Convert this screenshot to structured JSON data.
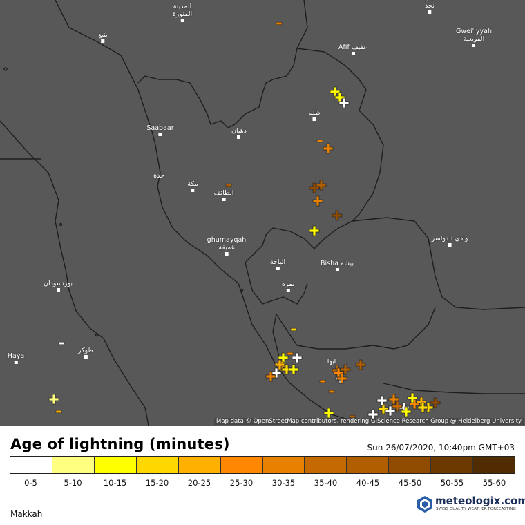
{
  "map": {
    "attribution": "Map data © OpenStreetMap contributors, rendering GIScience Research Group @ Heidelberg University",
    "cities": [
      {
        "id": "madinah",
        "label": "المدينة\nالمنورة"
      },
      {
        "id": "yanbu",
        "label": "ينبع"
      },
      {
        "id": "alrass",
        "label": "عالية\nنجد"
      },
      {
        "id": "gweiiyyah",
        "label": "Gwei'iyyah\nالقويعية"
      },
      {
        "id": "afif",
        "label": "Afif عفيف"
      },
      {
        "id": "zalim",
        "label": "ظلم"
      },
      {
        "id": "saabaar",
        "label": "Saabaar"
      },
      {
        "id": "dhahban",
        "label": "ذهبان"
      },
      {
        "id": "jeddah",
        "label": "جدة"
      },
      {
        "id": "makkah",
        "label": "مكة"
      },
      {
        "id": "taif",
        "label": "الطائف"
      },
      {
        "id": "wadi",
        "label": "وادي الدواسر"
      },
      {
        "id": "ghumayqah",
        "label": "ghumayqah\nغميقة"
      },
      {
        "id": "albaha",
        "label": "الباحة"
      },
      {
        "id": "bisha",
        "label": "Bisha بيشة"
      },
      {
        "id": "namira",
        "label": "نمرة"
      },
      {
        "id": "portsudan",
        "label": "بورتسودان"
      },
      {
        "id": "haya",
        "label": "Haya"
      },
      {
        "id": "tokar",
        "label": "طوكر"
      },
      {
        "id": "abha",
        "label": "ابها"
      }
    ],
    "strikes": [
      {
        "age": "10-15",
        "sym": "plus"
      },
      {
        "age": "10-15",
        "sym": "plus"
      },
      {
        "age": "0-5",
        "sym": "plus"
      },
      {
        "age": "30-35",
        "sym": "plus"
      },
      {
        "age": "40-45",
        "sym": "plus"
      },
      {
        "age": "45-50",
        "sym": "plus"
      },
      {
        "age": "30-35",
        "sym": "plus"
      },
      {
        "age": "45-50",
        "sym": "plus"
      },
      {
        "age": "10-15",
        "sym": "plus"
      },
      {
        "age": "10-15",
        "sym": "plus"
      },
      {
        "age": "0-5",
        "sym": "plus"
      },
      {
        "age": "20-25",
        "sym": "plus"
      },
      {
        "age": "15-20",
        "sym": "plus"
      },
      {
        "age": "0-5",
        "sym": "plus"
      },
      {
        "age": "30-35",
        "sym": "plus"
      },
      {
        "age": "0-5",
        "sym": "plus"
      },
      {
        "age": "35-40",
        "sym": "plus"
      },
      {
        "age": "40-45",
        "sym": "plus"
      },
      {
        "age": "10-15",
        "sym": "plus"
      },
      {
        "age": "15-20",
        "sym": "plus"
      },
      {
        "age": "0-5",
        "sym": "plus"
      },
      {
        "age": "0-5",
        "sym": "plus"
      },
      {
        "age": "25-30",
        "sym": "plus"
      },
      {
        "age": "45-50",
        "sym": "plus"
      },
      {
        "age": "10-15",
        "sym": "plus"
      },
      {
        "age": "30-35",
        "sym": "plus"
      },
      {
        "age": "20-25",
        "sym": "plus"
      },
      {
        "age": "5-10",
        "sym": "plus"
      },
      {
        "age": "0-5",
        "sym": "plus"
      },
      {
        "age": "40-45",
        "sym": "plus"
      },
      {
        "age": "15-20",
        "sym": "plus"
      },
      {
        "age": "35-40",
        "sym": "plus"
      },
      {
        "age": "25-30",
        "sym": "plus"
      },
      {
        "age": "0-5",
        "sym": "plus"
      },
      {
        "age": "10-15",
        "sym": "plus"
      },
      {
        "age": "30-35",
        "sym": "plus"
      },
      {
        "age": "15-20",
        "sym": "plus"
      },
      {
        "age": "10-15",
        "sym": "plus"
      },
      {
        "age": "10-15",
        "sym": "plus"
      },
      {
        "age": "20-25",
        "sym": "plus"
      },
      {
        "age": "30-35",
        "sym": "minus"
      },
      {
        "age": "40-45",
        "sym": "minus"
      },
      {
        "age": "30-35",
        "sym": "minus"
      },
      {
        "age": "15-20",
        "sym": "minus"
      },
      {
        "age": "0-5",
        "sym": "minus"
      },
      {
        "age": "25-30",
        "sym": "minus"
      },
      {
        "age": "30-35",
        "sym": "minus"
      },
      {
        "age": "20-25",
        "sym": "minus"
      },
      {
        "age": "25-30",
        "sym": "minus"
      },
      {
        "age": "40-45",
        "sym": "minus"
      }
    ]
  },
  "legend": {
    "title": "Age of lightning (minutes)",
    "timestamp": "Sun 26/07/2020, 10:40pm GMT+03",
    "bins": [
      {
        "label": "0-5",
        "color": "#ffffff"
      },
      {
        "label": "5-10",
        "color": "#ffff80"
      },
      {
        "label": "10-15",
        "color": "#ffff00"
      },
      {
        "label": "15-20",
        "color": "#ffd800"
      },
      {
        "label": "20-25",
        "color": "#ffb000"
      },
      {
        "label": "25-30",
        "color": "#ff8800"
      },
      {
        "label": "30-35",
        "color": "#e88000"
      },
      {
        "label": "35-40",
        "color": "#c46a00"
      },
      {
        "label": "40-45",
        "color": "#b05e00"
      },
      {
        "label": "45-50",
        "color": "#8f4c00"
      },
      {
        "label": "50-55",
        "color": "#6c3a00"
      },
      {
        "label": "55-60",
        "color": "#502c00"
      }
    ]
  },
  "footer": {
    "region": "Makkah",
    "brand_name": "meteologix.com",
    "brand_tagline": "SWISS QUALITY WEATHER FORECASTING"
  }
}
